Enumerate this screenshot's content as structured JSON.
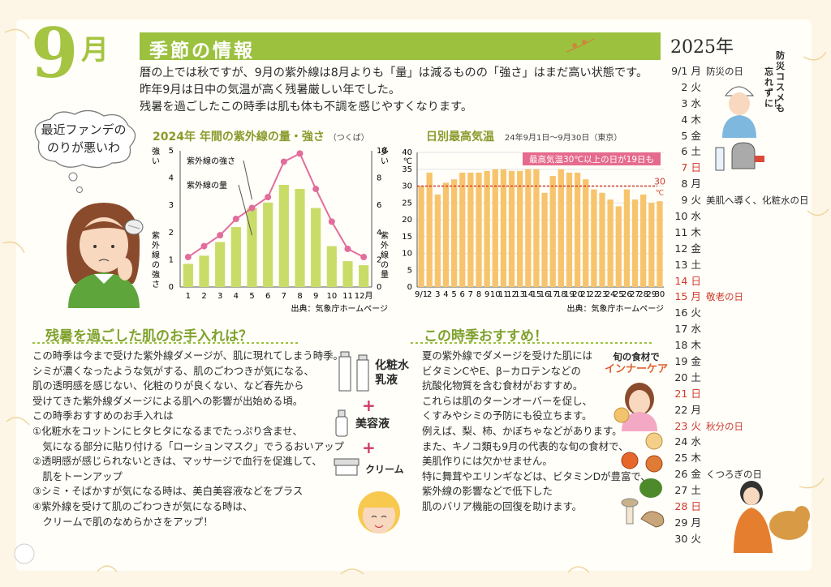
{
  "header": {
    "month_num": "9",
    "month_unit": "月",
    "banner_title": "季節の情報"
  },
  "intro": {
    "lines": [
      "暦の上では秋ですが、9月の紫外線は8月よりも「量」は減るものの「強さ」はまだ高い状態です。",
      "昨年9月は日中の気温が高く残暑厳しい年でした。",
      "残暑を過ごしたこの時季は肌も体も不調を感じやすくなります。"
    ]
  },
  "thought_bubble": {
    "lines": [
      "最近ファンデの",
      "のりが悪いわ"
    ]
  },
  "colors": {
    "accent": "#9cc13f",
    "bar_green": "#c9dc68",
    "line_pink": "#e26d9c",
    "bar_orange": "#f7c46d",
    "highlight_red": "#cf3a2c",
    "pink_label_bg": "#e66a8c"
  },
  "chart_uv": {
    "title": "2024年 年間の紫外線の量・強さ",
    "title_suffix": "（つくば）",
    "source": "出典：気象庁ホームページ",
    "left_axis_label": "紫外線の強さ",
    "left_axis_top": "強い",
    "right_axis_label": "紫外線の量",
    "right_axis_top": "多い",
    "legend_line": "紫外線の強さ",
    "legend_bar": "紫外線の量",
    "last_category_suffix": "月"
  },
  "chart_temp": {
    "title": "日別最高気温",
    "subtitle": "24年9月1日〜9月30日（東京）",
    "ylabel": "℃",
    "callout": "最高気温30℃以上の日が19日も",
    "threshold_label": "30",
    "threshold_unit": "℃",
    "first_tick": "9/1",
    "source": "出典：気象庁ホームページ"
  },
  "chart_data": [
    {
      "type": "bar",
      "title": "2024年 年間の紫外線の量・強さ",
      "categories": [
        "1",
        "2",
        "3",
        "4",
        "5",
        "6",
        "7",
        "8",
        "9",
        "10",
        "11",
        "12"
      ],
      "xlabel": "",
      "ylabel": "紫外線の量",
      "ylim": [
        0,
        10
      ],
      "series": [
        {
          "name": "紫外線の量",
          "values": [
            1.7,
            2.3,
            3.3,
            4.4,
            5.8,
            6.2,
            7.5,
            7.2,
            5.8,
            3.0,
            1.9,
            1.6
          ]
        }
      ]
    },
    {
      "type": "line",
      "title": "2024年 年間の紫外線の量・強さ",
      "categories": [
        "1",
        "2",
        "3",
        "4",
        "5",
        "6",
        "7",
        "8",
        "9",
        "10",
        "11",
        "12"
      ],
      "ylabel": "紫外線の強さ",
      "ylim": [
        0,
        5
      ],
      "series": [
        {
          "name": "紫外線の強さ",
          "values": [
            1.1,
            1.5,
            1.9,
            2.5,
            2.9,
            3.3,
            4.6,
            4.9,
            3.6,
            2.4,
            1.4,
            1.1
          ]
        }
      ]
    },
    {
      "type": "bar",
      "title": "日別最高気温",
      "categories": [
        "9/1",
        "2",
        "3",
        "4",
        "5",
        "6",
        "7",
        "8",
        "9",
        "10",
        "11",
        "12",
        "13",
        "14",
        "15",
        "16",
        "17",
        "18",
        "19",
        "20",
        "21",
        "22",
        "23",
        "24",
        "25",
        "26",
        "27",
        "28",
        "29",
        "30"
      ],
      "ylabel": "℃",
      "ylim": [
        0,
        40
      ],
      "series": [
        {
          "name": "最高気温",
          "values": [
            30,
            34,
            27.5,
            31,
            32,
            34,
            34,
            34,
            34.5,
            35,
            35,
            34.5,
            34.5,
            35,
            35,
            28,
            33,
            35,
            34,
            34,
            32,
            29,
            28,
            26,
            24,
            29,
            26,
            27.5,
            25,
            25.5
          ]
        }
      ],
      "threshold": 30
    }
  ],
  "skincare": {
    "title": "残暑を過ごした肌のお手入れは？",
    "lines": [
      "この時季は今まで受けた紫外線ダメージが、肌に現れてしまう時季。",
      "シミが濃くなったような気がする、肌のごわつきが気になる、",
      "肌の透明感を感じない、化粧のりが良くない、など春先から",
      "受けてきた紫外線ダメージによる肌への影響が出始める頃。",
      "この時季おすすめのお手入れは",
      "①化粧水をコットンにヒタヒタになるまでたっぷり含ませ、",
      "　気になる部分に貼り付ける「ローションマスク」でうるおいアップ",
      "②透明感が感じられないときは、マッサージで血行を促進して、",
      "　肌をトーンアップ",
      "③シミ・そばかすが気になる時は、美白美容液などをプラス",
      "④紫外線を受けて肌のごわつきが気になる時は、",
      "　クリームで肌のなめらかさをアップ！"
    ],
    "steps": [
      "化粧水",
      "乳液",
      "美容液",
      "クリーム"
    ]
  },
  "recommend": {
    "title": "この時季おすすめ！",
    "lines": [
      "夏の紫外線でダメージを受けた肌には",
      "ビタミンCやE、β−カロテンなどの",
      "抗酸化物質を含む食材がおすすめ。",
      "これらは肌のターンオーバーを促し、",
      "くすみやシミの予防にも役立ちます。",
      "例えば、梨、柿、かぼちゃなどがあります。",
      "また、キノコ類も9月の代表的な旬の食材で、",
      "美肌作りには欠かせません。",
      "特に舞茸やエリンギなどは、ビタミンDが豊富で、",
      "紫外線の影響などで低下した",
      "肌のバリア機能の回復を助けます。"
    ],
    "badge_lines": [
      "旬の食材で",
      "インナーケア"
    ]
  },
  "calendar": {
    "year": "2025年",
    "note_lines": [
      "防災コスメも",
      "忘れずに！"
    ],
    "days": [
      {
        "d": "9/1",
        "w": "月",
        "e": "防災の日",
        "red": false
      },
      {
        "d": "2",
        "w": "火",
        "e": "",
        "red": false
      },
      {
        "d": "3",
        "w": "水",
        "e": "",
        "red": false
      },
      {
        "d": "4",
        "w": "木",
        "e": "",
        "red": false
      },
      {
        "d": "5",
        "w": "金",
        "e": "",
        "red": false
      },
      {
        "d": "6",
        "w": "土",
        "e": "",
        "red": false
      },
      {
        "d": "7",
        "w": "日",
        "e": "",
        "red": true
      },
      {
        "d": "8",
        "w": "月",
        "e": "",
        "red": false
      },
      {
        "d": "9",
        "w": "火",
        "e": "美肌へ導く、化粧水の日",
        "red": false
      },
      {
        "d": "10",
        "w": "水",
        "e": "",
        "red": false
      },
      {
        "d": "11",
        "w": "木",
        "e": "",
        "red": false
      },
      {
        "d": "12",
        "w": "金",
        "e": "",
        "red": false
      },
      {
        "d": "13",
        "w": "土",
        "e": "",
        "red": false
      },
      {
        "d": "14",
        "w": "日",
        "e": "",
        "red": true
      },
      {
        "d": "15",
        "w": "月",
        "e": "敬老の日",
        "red": true
      },
      {
        "d": "16",
        "w": "火",
        "e": "",
        "red": false
      },
      {
        "d": "17",
        "w": "水",
        "e": "",
        "red": false
      },
      {
        "d": "18",
        "w": "木",
        "e": "",
        "red": false
      },
      {
        "d": "19",
        "w": "金",
        "e": "",
        "red": false
      },
      {
        "d": "20",
        "w": "土",
        "e": "",
        "red": false
      },
      {
        "d": "21",
        "w": "日",
        "e": "",
        "red": true
      },
      {
        "d": "22",
        "w": "月",
        "e": "",
        "red": false
      },
      {
        "d": "23",
        "w": "火",
        "e": "秋分の日",
        "red": true
      },
      {
        "d": "24",
        "w": "水",
        "e": "",
        "red": false
      },
      {
        "d": "25",
        "w": "木",
        "e": "",
        "red": false
      },
      {
        "d": "26",
        "w": "金",
        "e": "くつろぎの日",
        "red": false
      },
      {
        "d": "27",
        "w": "土",
        "e": "",
        "red": false
      },
      {
        "d": "28",
        "w": "日",
        "e": "",
        "red": true
      },
      {
        "d": "29",
        "w": "月",
        "e": "",
        "red": false
      },
      {
        "d": "30",
        "w": "火",
        "e": "",
        "red": false
      }
    ]
  }
}
